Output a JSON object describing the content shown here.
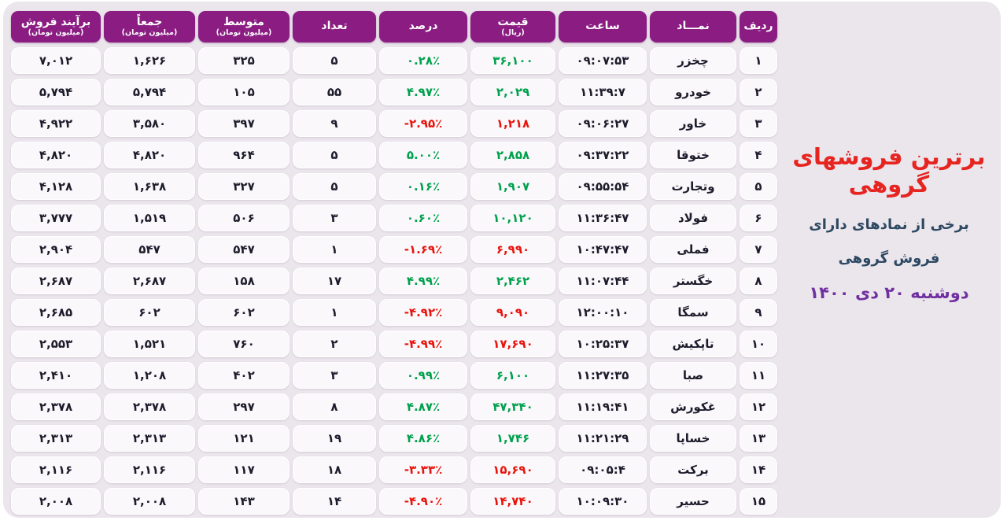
{
  "side_panel": {
    "title": "برترین فروشهای گروهی",
    "subtitle_line1": "برخی از نمادهای دارای",
    "subtitle_line2": "فروش گروهی",
    "date": "دوشنبه ۲۰ دی ۱۴۰۰"
  },
  "colors": {
    "panel_bg": "#ebe5ec",
    "header_bg": "#8a1c82",
    "header_text": "#ffffff",
    "cell_bg": "#faf8fb",
    "text": "#1d1c2b",
    "green": "#00a14d",
    "red": "#e8140c",
    "title_red": "#e62420",
    "subtitle": "#2c4962",
    "date_purple": "#7030a0"
  },
  "chart_data": {
    "type": "table",
    "title": "برترین فروشهای گروهی",
    "subtitle": "برخی از نمادهای دارای فروش گروهی",
    "date": "دوشنبه ۲۰ دی ۱۴۰۰",
    "columns": [
      {
        "key": "rank",
        "label": "ردیف",
        "sub": ""
      },
      {
        "key": "symbol",
        "label": "نمـــاد",
        "sub": ""
      },
      {
        "key": "time",
        "label": "ساعت",
        "sub": ""
      },
      {
        "key": "price",
        "label": "قیمت",
        "sub": "(ریال)"
      },
      {
        "key": "percent",
        "label": "درصد",
        "sub": ""
      },
      {
        "key": "count",
        "label": "تعداد",
        "sub": ""
      },
      {
        "key": "average",
        "label": "متوسط",
        "sub": "(میلیون تومان)"
      },
      {
        "key": "total",
        "label": "جمعاً",
        "sub": "(میلیون تومان)"
      },
      {
        "key": "net",
        "label": "برآیند فروش",
        "sub": "(میلیون تومان)"
      }
    ],
    "rows": [
      {
        "rank": "۱",
        "symbol": "چخزر",
        "time": "۰۹:۰۷:۵۳",
        "price": "۳۶,۱۰۰",
        "percent": "۰.۲۸٪",
        "trend": "up",
        "count": "۵",
        "average": "۳۲۵",
        "total": "۱,۶۲۶",
        "net": "۷,۰۱۲"
      },
      {
        "rank": "۲",
        "symbol": "خودرو",
        "time": "۱۱:۳۹:۷",
        "price": "۲,۰۲۹",
        "percent": "۴.۹۷٪",
        "trend": "up",
        "count": "۵۵",
        "average": "۱۰۵",
        "total": "۵,۷۹۴",
        "net": "۵,۷۹۴"
      },
      {
        "rank": "۳",
        "symbol": "خاور",
        "time": "۰۹:۰۶:۲۷",
        "price": "۱,۲۱۸",
        "percent": "-۲.۹۵٪",
        "trend": "down",
        "count": "۹",
        "average": "۳۹۷",
        "total": "۳,۵۸۰",
        "net": "۴,۹۲۲"
      },
      {
        "rank": "۴",
        "symbol": "ختوقا",
        "time": "۰۹:۳۷:۲۲",
        "price": "۲,۸۵۸",
        "percent": "۵.۰۰٪",
        "trend": "up",
        "count": "۵",
        "average": "۹۶۴",
        "total": "۴,۸۲۰",
        "net": "۴,۸۲۰"
      },
      {
        "rank": "۵",
        "symbol": "وتجارت",
        "time": "۰۹:۵۵:۵۴",
        "price": "۱,۹۰۷",
        "percent": "۰.۱۶٪",
        "trend": "up",
        "count": "۵",
        "average": "۳۲۷",
        "total": "۱,۶۳۸",
        "net": "۴,۱۲۸"
      },
      {
        "rank": "۶",
        "symbol": "فولاد",
        "time": "۱۱:۳۶:۴۷",
        "price": "۱۰,۱۲۰",
        "percent": "۰.۶۰٪",
        "trend": "up",
        "count": "۳",
        "average": "۵۰۶",
        "total": "۱,۵۱۹",
        "net": "۳,۷۷۷"
      },
      {
        "rank": "۷",
        "symbol": "فملی",
        "time": "۱۰:۴۷:۴۷",
        "price": "۶,۹۹۰",
        "percent": "-۱.۶۹٪",
        "trend": "down",
        "count": "۱",
        "average": "۵۴۷",
        "total": "۵۴۷",
        "net": "۲,۹۰۴"
      },
      {
        "rank": "۸",
        "symbol": "خگستر",
        "time": "۱۱:۰۷:۴۴",
        "price": "۲,۴۶۲",
        "percent": "۴.۹۹٪",
        "trend": "up",
        "count": "۱۷",
        "average": "۱۵۸",
        "total": "۲,۶۸۷",
        "net": "۲,۶۸۷"
      },
      {
        "rank": "۹",
        "symbol": "سمگا",
        "time": "۱۲:۰۰:۱۰",
        "price": "۹,۰۹۰",
        "percent": "-۴.۹۲٪",
        "trend": "down",
        "count": "۱",
        "average": "۶۰۲",
        "total": "۶۰۲",
        "net": "۲,۶۸۵"
      },
      {
        "rank": "۱۰",
        "symbol": "تاپکیش",
        "time": "۱۰:۲۵:۳۷",
        "price": "۱۷,۶۹۰",
        "percent": "-۴.۹۹٪",
        "trend": "down",
        "count": "۲",
        "average": "۷۶۰",
        "total": "۱,۵۲۱",
        "net": "۲,۵۵۳"
      },
      {
        "rank": "۱۱",
        "symbol": "صبا",
        "time": "۱۱:۲۷:۳۵",
        "price": "۶,۱۰۰",
        "percent": "۰.۹۹٪",
        "trend": "up",
        "count": "۳",
        "average": "۴۰۲",
        "total": "۱,۲۰۸",
        "net": "۲,۴۱۰"
      },
      {
        "rank": "۱۲",
        "symbol": "غکورش",
        "time": "۱۱:۱۹:۴۱",
        "price": "۴۷,۳۴۰",
        "percent": "۴.۸۷٪",
        "trend": "up",
        "count": "۸",
        "average": "۲۹۷",
        "total": "۲,۳۷۸",
        "net": "۲,۳۷۸"
      },
      {
        "rank": "۱۳",
        "symbol": "خساپا",
        "time": "۱۱:۲۱:۲۹",
        "price": "۱,۷۴۶",
        "percent": "۴.۸۶٪",
        "trend": "up",
        "count": "۱۹",
        "average": "۱۲۱",
        "total": "۲,۳۱۳",
        "net": "۲,۳۱۳"
      },
      {
        "rank": "۱۴",
        "symbol": "برکت",
        "time": "۰۹:۰۵:۴",
        "price": "۱۵,۶۹۰",
        "percent": "-۳.۳۳٪",
        "trend": "down",
        "count": "۱۸",
        "average": "۱۱۷",
        "total": "۲,۱۱۶",
        "net": "۲,۱۱۶"
      },
      {
        "rank": "۱۵",
        "symbol": "حسیر",
        "time": "۱۰:۰۹:۳۰",
        "price": "۱۴,۷۴۰",
        "percent": "-۴.۹۰٪",
        "trend": "down",
        "count": "۱۴",
        "average": "۱۴۳",
        "total": "۲,۰۰۸",
        "net": "۲,۰۰۸"
      }
    ]
  }
}
